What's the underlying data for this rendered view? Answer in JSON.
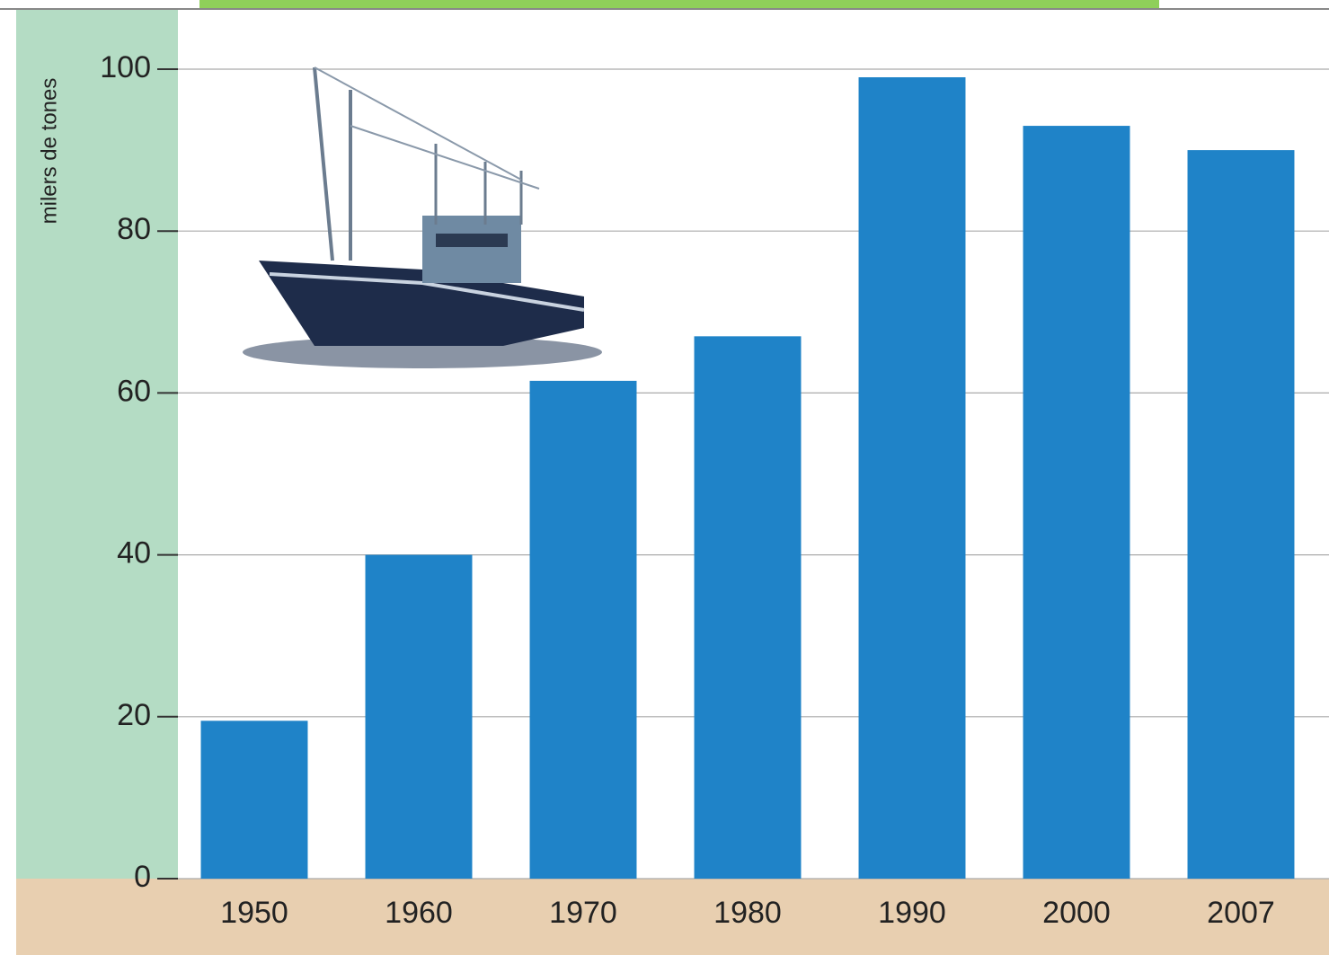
{
  "chart_data": {
    "type": "bar",
    "y_label": "milers de tones",
    "categories": [
      "1950",
      "1960",
      "1970",
      "1980",
      "1990",
      "2000",
      "2007"
    ],
    "values": [
      19.5,
      40,
      61.5,
      67,
      99,
      93,
      90
    ],
    "color": "#1f83c8",
    "ylim": [
      0,
      100
    ],
    "yticks": [
      0,
      20,
      40,
      60,
      80,
      100
    ],
    "grid": true
  }
}
